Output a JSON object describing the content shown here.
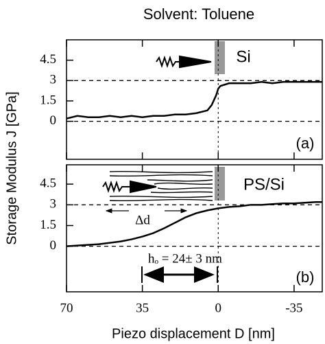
{
  "title": "Solvent: Toluene",
  "xlabel": "Piezo displacement D [nm]",
  "ylabel": "Storage Modulus J [GPa]",
  "chart_data": [
    {
      "type": "line",
      "color": "#000000",
      "x": [
        70,
        65,
        60,
        55,
        50,
        45,
        40,
        35,
        30,
        25,
        20,
        15,
        10,
        5,
        3,
        1,
        0,
        -1,
        -3,
        -5,
        -10,
        -15,
        -20,
        -25,
        -30,
        -35,
        -40,
        -45,
        -48
      ],
      "values": [
        0.2,
        0.4,
        0.3,
        0.3,
        0.4,
        0.3,
        0.4,
        0.3,
        0.4,
        0.4,
        0.5,
        0.5,
        0.6,
        0.8,
        1.2,
        1.9,
        2.4,
        2.6,
        2.7,
        2.8,
        2.8,
        2.8,
        2.9,
        2.8,
        2.9,
        2.9,
        2.9,
        2.9,
        2.9
      ],
      "xlim": [
        70,
        -48
      ],
      "ylim": [
        -2.8,
        6
      ],
      "yticks": [
        4.5,
        3,
        1.5,
        0
      ],
      "annotations": [
        "Si",
        "(a)"
      ]
    },
    {
      "type": "line",
      "color": "#000000",
      "x": [
        70,
        65,
        60,
        55,
        50,
        45,
        40,
        35,
        30,
        25,
        20,
        15,
        10,
        5,
        0,
        -5,
        -10,
        -15,
        -20,
        -25,
        -30,
        -35,
        -40,
        -45,
        -48
      ],
      "values": [
        0,
        0.05,
        0.1,
        0.15,
        0.25,
        0.35,
        0.5,
        0.7,
        0.95,
        1.3,
        1.7,
        2.1,
        2.4,
        2.6,
        2.75,
        2.85,
        2.9,
        3.0,
        3.0,
        3.05,
        3.1,
        3.1,
        3.15,
        3.2,
        3.2
      ],
      "xlim": [
        70,
        -48
      ],
      "ylim": [
        -3.3,
        5.9
      ],
      "yticks": [
        4.5,
        3,
        1.5,
        0
      ],
      "xticks": [
        70,
        35,
        0,
        -35
      ],
      "annotations": [
        "PS/Si",
        "Δd",
        "hₒ = 24± 3 nm",
        "(b)"
      ]
    }
  ]
}
